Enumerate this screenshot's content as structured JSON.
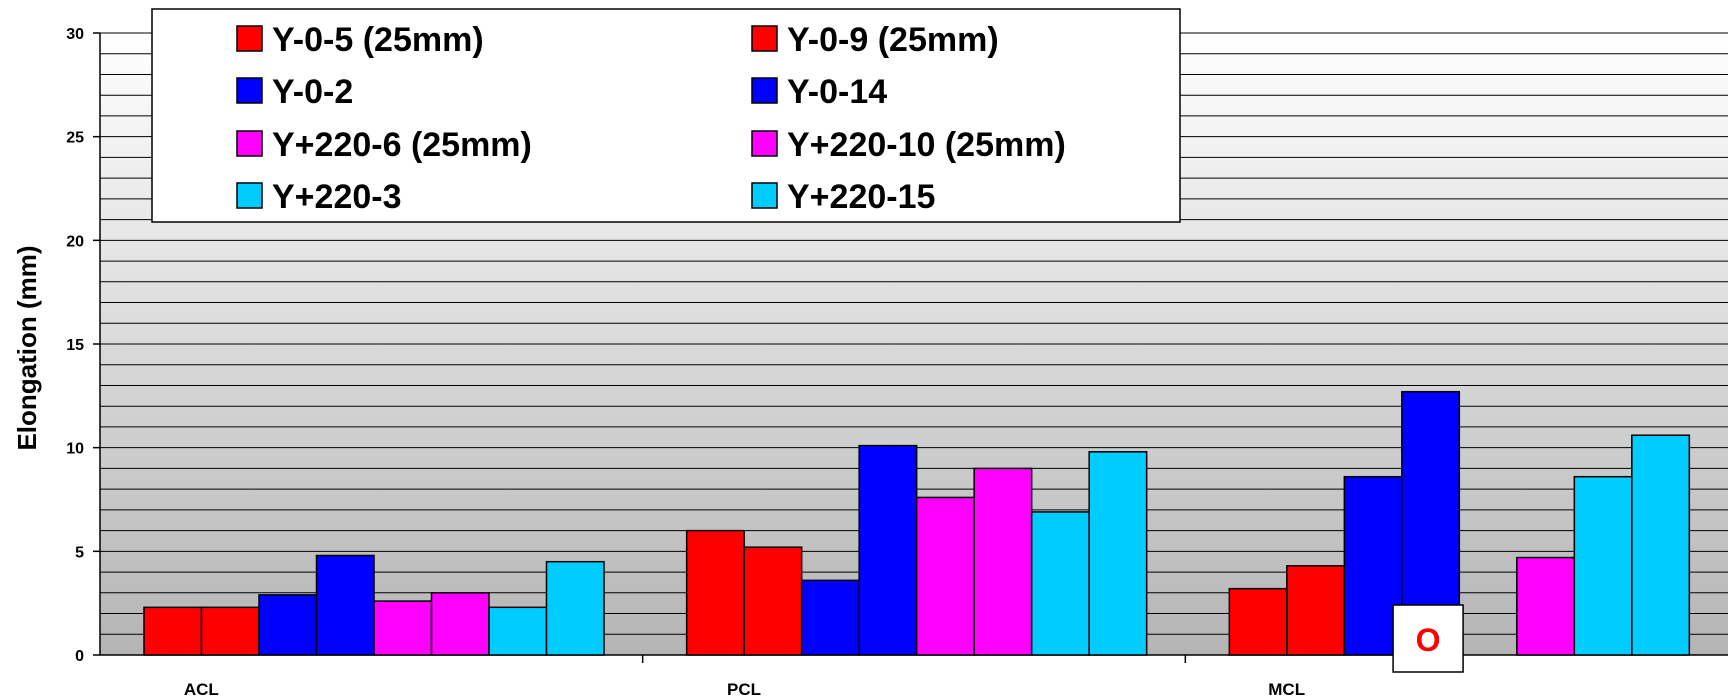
{
  "chart_data": {
    "type": "bar",
    "ylabel": "Elongation (mm)",
    "xlabel": "",
    "ylim": [
      0,
      30
    ],
    "yticks": [
      0,
      5,
      10,
      15,
      20,
      25,
      30
    ],
    "grid": true,
    "legend_placement": "top-left",
    "categories": [
      "ACL",
      "PCL",
      "MCL"
    ],
    "series": [
      {
        "name": "Y-0-5 (25mm)",
        "color": "#ff0000",
        "values": [
          2.3,
          6.0,
          3.2
        ]
      },
      {
        "name": "Y-0-9 (25mm)",
        "color": "#ff0000",
        "values": [
          2.3,
          5.2,
          4.3
        ]
      },
      {
        "name": "Y-0-2",
        "color": "#0000ff",
        "values": [
          2.9,
          3.6,
          8.6
        ]
      },
      {
        "name": "Y-0-14",
        "color": "#0000ff",
        "values": [
          4.8,
          10.1,
          12.7
        ]
      },
      {
        "name": "Y+220-6 (25mm)",
        "color": "#ff00ff",
        "values": [
          2.6,
          7.6,
          null
        ]
      },
      {
        "name": "Y+220-10 (25mm)",
        "color": "#ff00ff",
        "values": [
          3.0,
          9.0,
          4.7
        ]
      },
      {
        "name": "Y+220-3",
        "color": "#00ccff",
        "values": [
          2.3,
          6.9,
          8.6
        ]
      },
      {
        "name": "Y+220-15",
        "color": "#00ccff",
        "values": [
          4.5,
          9.8,
          10.6
        ]
      }
    ],
    "annotations": [
      {
        "text": "O",
        "category": "MCL",
        "series": "Y+220-6 (25mm)",
        "color": "#ff0000"
      }
    ]
  }
}
